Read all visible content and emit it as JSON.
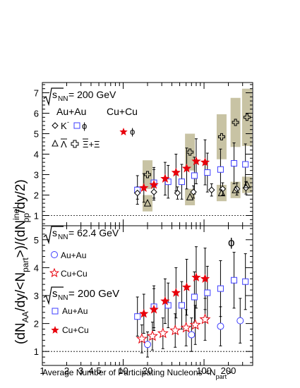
{
  "chart_data": [
    {
      "type": "scatter",
      "panel": "top",
      "log_x": true,
      "xlim": [
        1,
        400
      ],
      "ylim": [
        0.5,
        7.5
      ],
      "header": {
        "sqrt": "s",
        "sub": "NN",
        "eq": "= 200 GeV"
      },
      "col_headers": [
        "Au+Au",
        "Cu+Cu"
      ],
      "legend": {
        "k": "K",
        "k_sup": "-",
        "phi": "ϕ",
        "lambda": "Λ",
        "xi": "Ξ+Ξ",
        "cu_phi": "ϕ"
      },
      "reference_line_y": 1,
      "series": [
        {
          "name": "ϕ",
          "marker": "open-square",
          "color": "#3c3cff",
          "x": [
            15,
            24,
            36,
            53,
            76,
            110,
            160,
            235,
            325
          ],
          "y": [
            2.25,
            2.6,
            2.65,
            2.65,
            2.95,
            3.1,
            3.25,
            3.55,
            3.5
          ],
          "err": [
            0.7,
            0.75,
            0.8,
            0.85,
            0.9,
            0.95,
            1.0,
            1.0,
            1.0
          ]
        },
        {
          "name": "Cu+Cu ϕ",
          "marker": "filled-star",
          "color": "#e8000b",
          "x": [
            18,
            24,
            33,
            45,
            61,
            80,
            103
          ],
          "y": [
            2.35,
            2.5,
            2.8,
            3.1,
            3.3,
            3.65,
            3.6
          ],
          "err": [
            0.7,
            0.75,
            0.8,
            0.9,
            1.0,
            1.1,
            1.1
          ]
        },
        {
          "name": "K",
          "sup": "-",
          "marker": "open-diamond",
          "color": "#000000",
          "x": [
            15,
            24,
            47,
            74,
            124,
            170,
            255,
            330
          ],
          "y": [
            2.1,
            2.15,
            2.1,
            2.15,
            2.25,
            2.3,
            2.3,
            2.35
          ],
          "err": [
            0.3,
            0.3,
            0.3,
            0.3,
            0.3,
            0.3,
            0.3,
            0.3
          ]
        },
        {
          "name": "Λ",
          "marker": "open-triangle",
          "color": "#000000",
          "x": [
            20,
            67,
            165,
            245,
            340
          ],
          "y": [
            1.6,
            1.9,
            2.1,
            2.25,
            2.5
          ],
          "sys": [
            0.4,
            0.4,
            0.4,
            0.4,
            0.4
          ]
        },
        {
          "name": "Ξ+Ξ",
          "marker": "open-cross",
          "color": "#000000",
          "x": [
            20,
            67,
            165,
            245,
            340
          ],
          "y": [
            3.0,
            4.1,
            4.85,
            5.55,
            5.8
          ],
          "sys": [
            0.7,
            0.9,
            1.1,
            1.2,
            1.4
          ]
        }
      ]
    },
    {
      "type": "scatter",
      "panel": "bottom",
      "log_x": true,
      "xlim": [
        1,
        400
      ],
      "ylim": [
        0.5,
        5.5
      ],
      "header_62": {
        "sqrt": "s",
        "sub": "NN",
        "eq": "= 62.4 GeV"
      },
      "header_200": {
        "sqrt": "s",
        "sub": "NN",
        "eq": "= 200 GeV"
      },
      "phi_label": "ϕ",
      "legend": {
        "auau62": "Au+Au",
        "cucu62": "Cu+Cu",
        "auau200": "Au+Au",
        "cucu200": "Cu+Cu"
      },
      "reference_line_y": 1,
      "series": [
        {
          "name": "Au+Au 62.4 GeV",
          "marker": "open-circle",
          "color": "#3c3cff",
          "x": [
            20,
            70,
            160,
            280
          ],
          "y": [
            1.25,
            1.6,
            1.9,
            2.1
          ],
          "err": [
            0.45,
            0.6,
            0.7,
            0.8
          ]
        },
        {
          "name": "Cu+Cu 62.4 GeV",
          "marker": "open-star",
          "color": "#e8000b",
          "x": [
            17,
            23,
            31,
            44,
            60,
            78,
            103
          ],
          "y": [
            1.45,
            1.55,
            1.65,
            1.75,
            1.85,
            1.95,
            2.15
          ],
          "err": [
            0.5,
            0.5,
            0.55,
            0.6,
            0.65,
            0.7,
            0.75
          ]
        },
        {
          "name": "Au+Au 200 GeV",
          "marker": "open-square",
          "color": "#3c3cff",
          "x": [
            15,
            24,
            36,
            53,
            76,
            110,
            160,
            235,
            325
          ],
          "y": [
            2.25,
            2.6,
            2.65,
            2.65,
            2.95,
            3.1,
            3.25,
            3.55,
            3.5
          ],
          "err": [
            0.7,
            0.75,
            0.8,
            0.85,
            0.9,
            0.95,
            1.0,
            1.0,
            1.0
          ]
        },
        {
          "name": "Cu+Cu 200 GeV",
          "marker": "filled-star",
          "color": "#e8000b",
          "x": [
            18,
            24,
            33,
            45,
            61,
            80,
            103
          ],
          "y": [
            2.35,
            2.5,
            2.8,
            3.1,
            3.3,
            3.65,
            3.6
          ],
          "err": [
            0.7,
            0.75,
            0.8,
            0.9,
            1.0,
            1.1,
            1.1
          ]
        }
      ]
    }
  ],
  "axes": {
    "x_ticks": [
      "1",
      "2",
      "3",
      "4",
      "5",
      "10",
      "20",
      "100",
      "200"
    ],
    "x_tick_values": [
      1,
      2,
      3,
      4,
      5,
      10,
      20,
      100,
      200
    ],
    "top_y_ticks": [
      "1",
      "2",
      "3",
      "4",
      "5",
      "6",
      "7"
    ],
    "bottom_y_ticks": [
      "1",
      "2",
      "3",
      "4",
      "5"
    ],
    "xlabel": "Average Number of Participating Nucleons <N",
    "xlabel_sub": "part",
    "xlabel_end": ">",
    "ylabel_parts": {
      "a": "(dN",
      "a_sub": "AA",
      "b": "/dy/<N",
      "b_sub": "part",
      "c": ">)/(dN",
      "c_sup": "inel",
      "c_sub": "pp",
      "d": "/dy/2)"
    }
  },
  "colors": {
    "blue": "#3c3cff",
    "red": "#e8000b",
    "band": "#c8c3a4"
  }
}
